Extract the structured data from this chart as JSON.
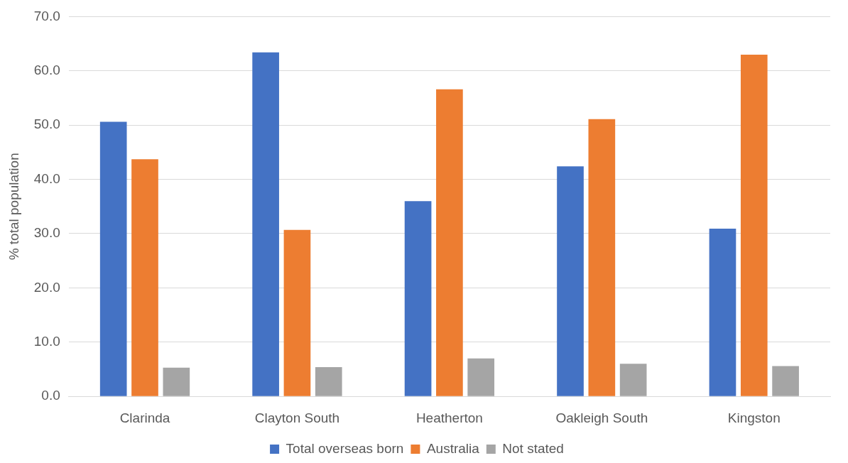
{
  "chart_data": {
    "type": "bar",
    "ylabel": "% total population",
    "categories": [
      "Clarinda",
      "Clayton South",
      "Heatherton",
      "Oakleigh South",
      "Kingston"
    ],
    "series": [
      {
        "name": "Total overseas born",
        "color": "#4472c4",
        "values": [
          50.6,
          63.4,
          36.0,
          42.4,
          30.9
        ]
      },
      {
        "name": "Australia",
        "color": "#ed7d31",
        "values": [
          43.7,
          30.7,
          56.6,
          51.1,
          63.0
        ]
      },
      {
        "name": "Not stated",
        "color": "#a5a5a5",
        "values": [
          5.3,
          5.4,
          7.0,
          6.0,
          5.6
        ]
      }
    ],
    "ylim": [
      0,
      70
    ],
    "yticks": [
      {
        "value": 0,
        "label": "0.0"
      },
      {
        "value": 10,
        "label": "10.0"
      },
      {
        "value": 20,
        "label": "20.0"
      },
      {
        "value": 30,
        "label": "30.0"
      },
      {
        "value": 40,
        "label": "40.0"
      },
      {
        "value": 50,
        "label": "50.0"
      },
      {
        "value": 60,
        "label": "60.0"
      },
      {
        "value": 70,
        "label": "70.0"
      }
    ],
    "grid": "y",
    "legend": "bottom"
  }
}
